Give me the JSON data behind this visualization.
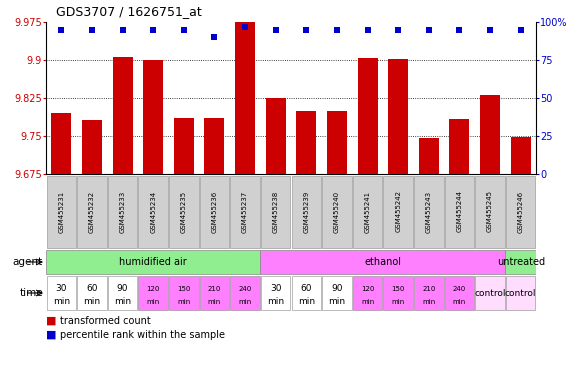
{
  "title": "GDS3707 / 1626751_at",
  "gsm_labels": [
    "GSM455231",
    "GSM455232",
    "GSM455233",
    "GSM455234",
    "GSM455235",
    "GSM455236",
    "GSM455237",
    "GSM455238",
    "GSM455239",
    "GSM455240",
    "GSM455241",
    "GSM455242",
    "GSM455243",
    "GSM455244",
    "GSM455245",
    "GSM455246"
  ],
  "bar_values": [
    9.795,
    9.782,
    9.905,
    9.9,
    9.786,
    9.785,
    9.975,
    9.825,
    9.8,
    9.8,
    9.903,
    9.902,
    9.747,
    9.783,
    9.83,
    9.748
  ],
  "percentile_values": [
    95,
    95,
    95,
    95,
    95,
    90,
    97,
    95,
    95,
    95,
    95,
    95,
    95,
    95,
    95,
    95
  ],
  "bar_color": "#cc0000",
  "dot_color": "#0000cc",
  "ylim_left": [
    9.675,
    9.975
  ],
  "ylim_right": [
    0,
    100
  ],
  "yticks_left": [
    9.675,
    9.75,
    9.825,
    9.9,
    9.975
  ],
  "yticks_right": [
    0,
    25,
    50,
    75,
    100
  ],
  "ytick_labels_left": [
    "9.675",
    "9.75",
    "9.825",
    "9.9",
    "9.975"
  ],
  "ytick_labels_right": [
    "0",
    "25",
    "50",
    "75",
    "100%"
  ],
  "agent_groups": [
    {
      "label": "humidified air",
      "start": 0,
      "end": 7,
      "color": "#90ee90"
    },
    {
      "label": "ethanol",
      "start": 7,
      "end": 15,
      "color": "#ff80ff"
    },
    {
      "label": "untreated",
      "start": 15,
      "end": 16,
      "color": "#90ee90"
    }
  ],
  "time_labels": [
    "30\nmin",
    "60\nmin",
    "90\nmin",
    "120\nmin",
    "150\nmin",
    "210\nmin",
    "240\nmin",
    "30\nmin",
    "60\nmin",
    "90\nmin",
    "120\nmin",
    "150\nmin",
    "210\nmin",
    "240\nmin"
  ],
  "time_white_indices": [
    0,
    1,
    2,
    7,
    8,
    9
  ],
  "time_pink_indices": [
    3,
    4,
    5,
    6,
    10,
    11,
    12,
    13
  ],
  "pink_color": "#ff80ff",
  "white_color": "#ffffff",
  "control_label": "control",
  "control_color": "#ffddff",
  "legend_bar_label": "transformed count",
  "legend_dot_label": "percentile rank within the sample",
  "agent_label": "agent",
  "time_label": "time",
  "tick_label_color_left": "#cc0000",
  "tick_label_color_right": "#0000cc",
  "gsm_box_color": "#d0d0d0",
  "gsm_box_edge": "#888888"
}
